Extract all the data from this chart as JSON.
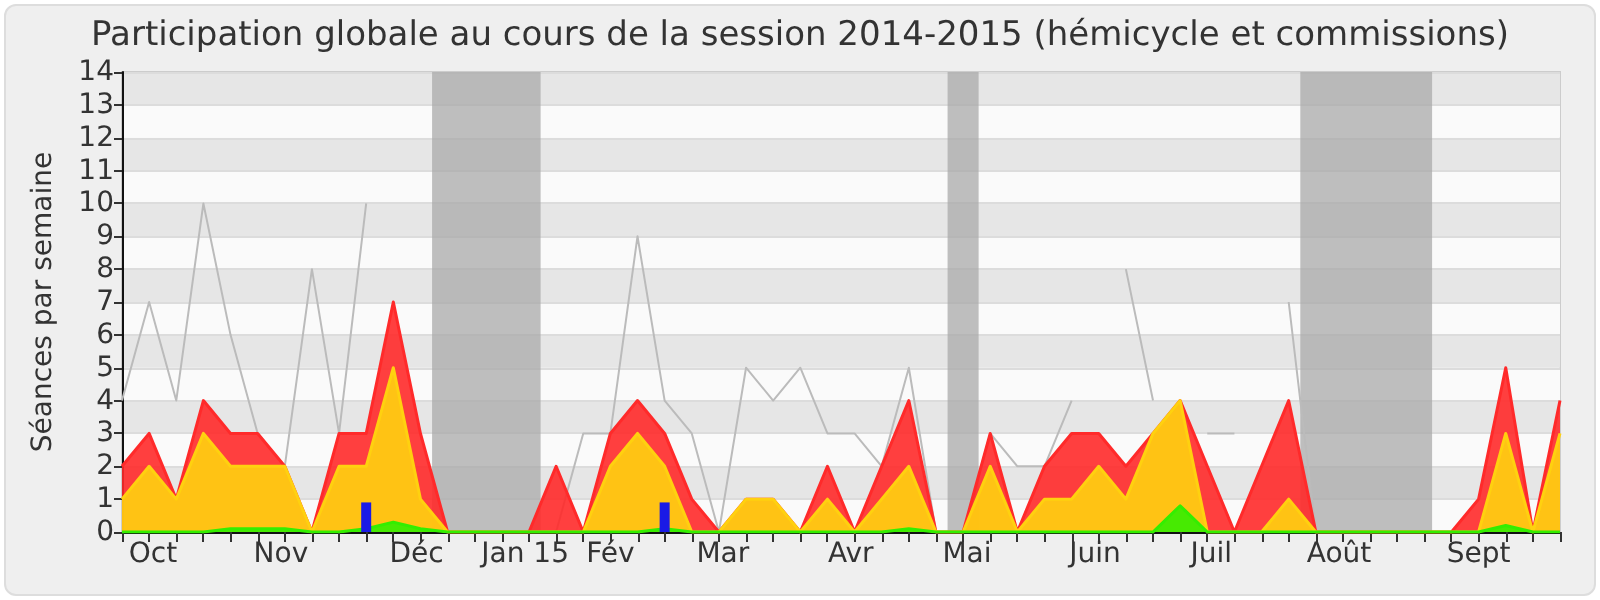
{
  "chart_data": {
    "type": "area",
    "title": "Participation globale au cours de la session 2014-2015 (hémicycle et commissions)",
    "ylabel": "Séances par semaine",
    "x": [
      "2014-09-29",
      "2014-10-06",
      "2014-10-13",
      "2014-10-20",
      "2014-10-27",
      "2014-11-03",
      "2014-11-10",
      "2014-11-17",
      "2014-11-24",
      "2014-12-01",
      "2014-12-08",
      "2014-12-15",
      "2014-12-22",
      "2014-12-29",
      "2015-01-05",
      "2015-01-12",
      "2015-01-19",
      "2015-01-26",
      "2015-02-02",
      "2015-02-09",
      "2015-02-16",
      "2015-02-23",
      "2015-03-02",
      "2015-03-09",
      "2015-03-16",
      "2015-03-23",
      "2015-03-30",
      "2015-04-06",
      "2015-04-13",
      "2015-04-20",
      "2015-04-27",
      "2015-05-04",
      "2015-05-11",
      "2015-05-18",
      "2015-05-25",
      "2015-06-01",
      "2015-06-08",
      "2015-06-15",
      "2015-06-22",
      "2015-06-29",
      "2015-07-06",
      "2015-07-13",
      "2015-07-20",
      "2015-07-27",
      "2015-08-03",
      "2015-08-10",
      "2015-08-17",
      "2015-08-24",
      "2015-08-31",
      "2015-09-07",
      "2015-09-14",
      "2015-09-21",
      "2015-09-28",
      "2015-10-05"
    ],
    "series": [
      {
        "type": "line",
        "color": "#bbbbbb",
        "values": [
          4,
          7,
          4,
          10,
          6,
          3,
          2,
          8,
          3,
          10,
          null,
          null,
          0,
          0,
          0,
          0,
          0,
          3,
          3,
          9,
          4,
          3,
          0,
          5,
          4,
          5,
          3,
          3,
          2,
          5,
          0,
          0,
          3,
          2,
          2,
          4,
          null,
          8,
          4,
          null,
          3,
          3,
          null,
          7,
          0,
          0,
          0,
          0,
          0,
          0,
          null,
          null,
          null,
          null
        ]
      },
      {
        "color": "#ff2a2a",
        "values": [
          2,
          3,
          1,
          4,
          3,
          3,
          2,
          0,
          3,
          3,
          7,
          3,
          0,
          0,
          0,
          0,
          2,
          0,
          3,
          4,
          3,
          1,
          0,
          1,
          1,
          0,
          2,
          0,
          2,
          4,
          0,
          0,
          3,
          0,
          2,
          3,
          3,
          2,
          3,
          4,
          2,
          0,
          2,
          4,
          0,
          0,
          0,
          0,
          0,
          0,
          1,
          5,
          0,
          4
        ]
      },
      {
        "color": "#ffd10f",
        "values": [
          1,
          2,
          1,
          3,
          2,
          2,
          2,
          0,
          2,
          2,
          5,
          1,
          0,
          0,
          0,
          0,
          0,
          0,
          2,
          3,
          2,
          0,
          0,
          1,
          1,
          0,
          1,
          0,
          1,
          2,
          0,
          0,
          2,
          0,
          1,
          1,
          2,
          1,
          3,
          4,
          0,
          0,
          0,
          1,
          0,
          0,
          0,
          0,
          0,
          0,
          0,
          3,
          0,
          3
        ]
      },
      {
        "color": "#33ee00",
        "values": [
          0,
          0,
          0,
          0,
          0.1,
          0.1,
          0.1,
          0,
          0,
          0.1,
          0.3,
          0.1,
          0,
          0,
          0,
          0,
          0,
          0,
          0,
          0,
          0.1,
          0,
          0,
          0,
          0,
          0,
          0,
          0,
          0,
          0.1,
          0,
          0,
          0,
          0,
          0,
          0,
          0,
          0,
          0,
          0.8,
          0,
          0,
          0,
          0,
          0,
          0,
          0,
          0,
          0,
          0,
          0,
          0.2,
          0,
          0
        ]
      },
      {
        "type": "bar",
        "color": "#1a1ae6",
        "values": [
          null,
          null,
          null,
          null,
          null,
          null,
          null,
          null,
          null,
          0.9,
          null,
          null,
          null,
          null,
          null,
          null,
          null,
          null,
          null,
          null,
          0.9,
          null,
          null,
          null,
          null,
          null,
          null,
          null,
          null,
          null,
          null,
          null,
          null,
          null,
          null,
          null,
          null,
          null,
          null,
          null,
          null,
          null,
          null,
          null,
          null,
          null,
          null,
          null,
          null,
          null,
          null,
          null,
          null,
          null
        ]
      }
    ],
    "xlim": [
      "2014-09-29",
      "2015-10-05"
    ],
    "xticks": [
      {
        "value": "2014-10-07",
        "label": "Oct"
      },
      {
        "value": "2014-11-09",
        "label": "Nov"
      },
      {
        "value": "2014-12-14",
        "label": "Déc"
      },
      {
        "value": "2015-01-11",
        "label": "Jan 15"
      },
      {
        "value": "2015-02-02",
        "label": "Fév"
      },
      {
        "value": "2015-03-03",
        "label": "Mar"
      },
      {
        "value": "2015-04-05",
        "label": "Avr"
      },
      {
        "value": "2015-05-05",
        "label": "Mai"
      },
      {
        "value": "2015-06-07",
        "label": "Juin"
      },
      {
        "value": "2015-07-07",
        "label": "Juil"
      },
      {
        "value": "2015-08-09",
        "label": "Août"
      },
      {
        "value": "2015-09-14",
        "label": "Sept"
      }
    ],
    "ylim": [
      0,
      14
    ],
    "yticks": [
      0,
      1,
      2,
      3,
      4,
      5,
      6,
      7,
      8,
      9,
      10,
      11,
      12,
      13,
      14
    ],
    "bands": [
      {
        "axis": "x",
        "from": "2014-12-18",
        "to": "2015-01-15",
        "color": "#aaaaaa"
      },
      {
        "axis": "x",
        "from": "2015-04-30",
        "to": "2015-05-08",
        "color": "#aaaaaa"
      },
      {
        "axis": "x",
        "from": "2015-07-30",
        "to": "2015-09-02",
        "color": "#aaaaaa"
      }
    ],
    "grid": "y",
    "marker": "none",
    "line_style": "solid"
  }
}
